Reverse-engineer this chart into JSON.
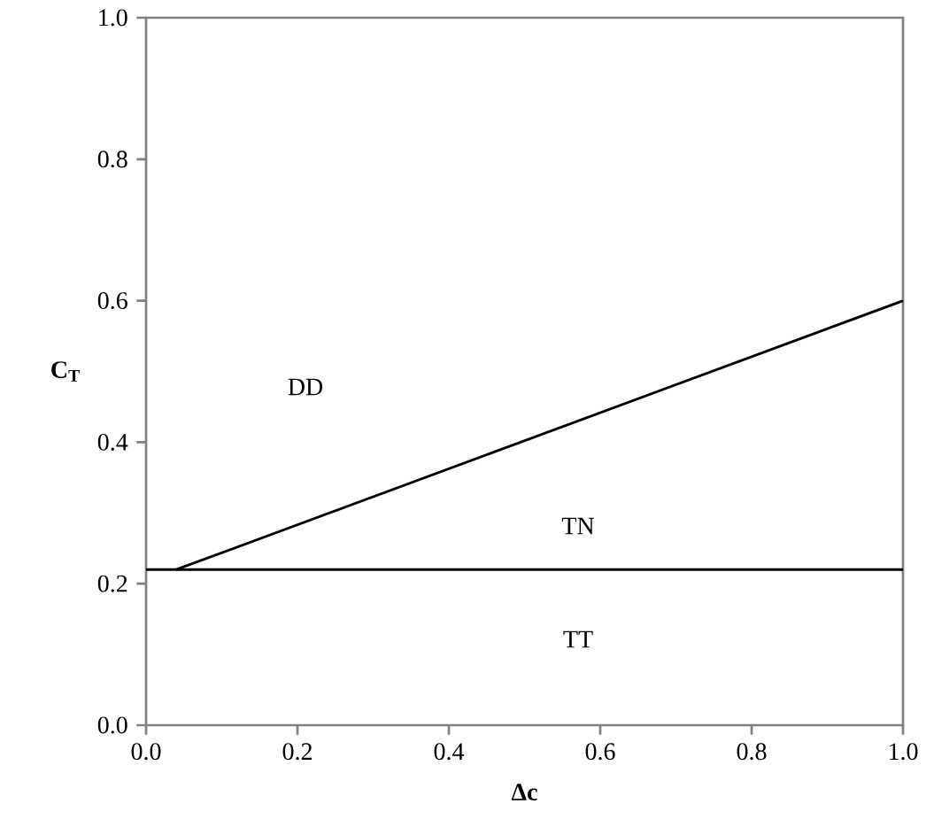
{
  "chart_data": {
    "type": "line",
    "xlabel": "Δc",
    "ylabel": "C$_{T}$",
    "series": [
      {
        "color": "#000000",
        "x": [
          0.04,
          1.0
        ],
        "values": [
          0.22,
          0.6
        ]
      },
      {
        "color": "#000000",
        "x": [
          0.0,
          1.0
        ],
        "values": [
          0.22,
          0.22
        ]
      }
    ],
    "xlim": [
      0,
      1
    ],
    "ylim": [
      0,
      1
    ],
    "xticks": [
      {
        "value": 0,
        "label": "0.0"
      },
      {
        "value": 0.2,
        "label": "0.2"
      },
      {
        "value": 0.4,
        "label": "0.4"
      },
      {
        "value": 0.6,
        "label": "0.6"
      },
      {
        "value": 0.8,
        "label": "0.8"
      },
      {
        "value": 1,
        "label": "1.0"
      }
    ],
    "yticks": [
      {
        "value": 0,
        "label": "0.0"
      },
      {
        "value": 0.2,
        "label": "0.2"
      },
      {
        "value": 0.4,
        "label": "0.4"
      },
      {
        "value": 0.6,
        "label": "0.6"
      },
      {
        "value": 0.8,
        "label": "0.8"
      },
      {
        "value": 1,
        "label": "1.0"
      }
    ],
    "annotations": [
      "DD",
      "TN",
      "TT"
    ],
    "grid": false,
    "marker": "none",
    "line_style": "solid"
  }
}
